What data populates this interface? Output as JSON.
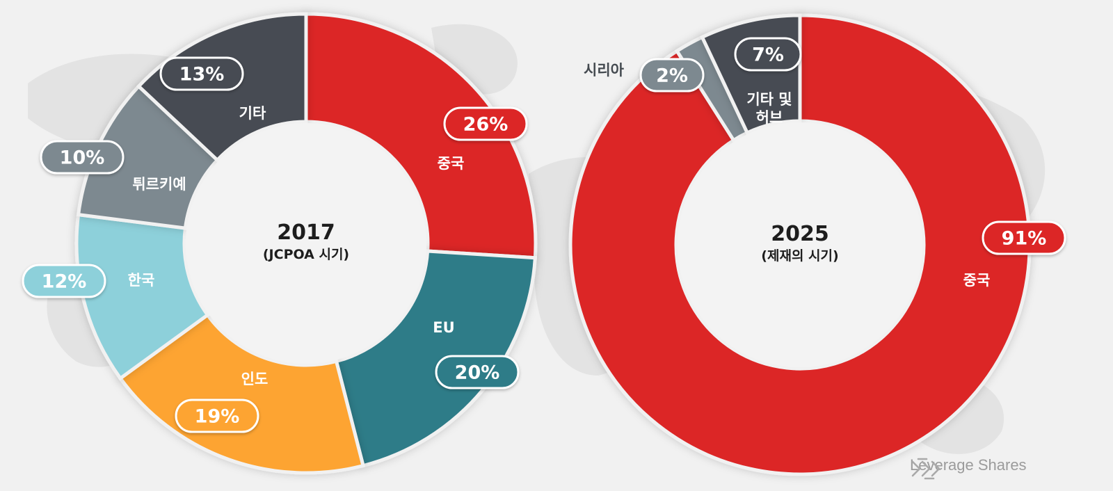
{
  "chart_data": [
    {
      "type": "pie",
      "title": "2017",
      "subtitle": "(JCPOA 시기)",
      "unit": "%",
      "slices": [
        {
          "label": "중국",
          "value": 26,
          "pct_label": "26%",
          "color": "#dc2527"
        },
        {
          "label": "EU",
          "value": 20,
          "pct_label": "20%",
          "color": "#2e7b88"
        },
        {
          "label": "인도",
          "value": 19,
          "pct_label": "19%",
          "color": "#fda430"
        },
        {
          "label": "한국",
          "value": 12,
          "pct_label": "12%",
          "color": "#8dd0da"
        },
        {
          "label": "튀르키예",
          "value": 10,
          "pct_label": "10%",
          "color": "#7d8990"
        },
        {
          "label": "기타",
          "value": 13,
          "pct_label": "13%",
          "color": "#474c53"
        }
      ]
    },
    {
      "type": "pie",
      "title": "2025",
      "subtitle": "(제재의 시기)",
      "unit": "%",
      "slices": [
        {
          "label": "중국",
          "value": 91,
          "pct_label": "91%",
          "color": "#dc2527"
        },
        {
          "label": "시리아",
          "value": 2,
          "pct_label": "2%",
          "color": "#7d8990"
        },
        {
          "label": "기타 및 허브",
          "value": 7,
          "pct_label": "7%",
          "color": "#474c53"
        }
      ]
    }
  ],
  "brand": {
    "name": "Leverage Shares"
  }
}
